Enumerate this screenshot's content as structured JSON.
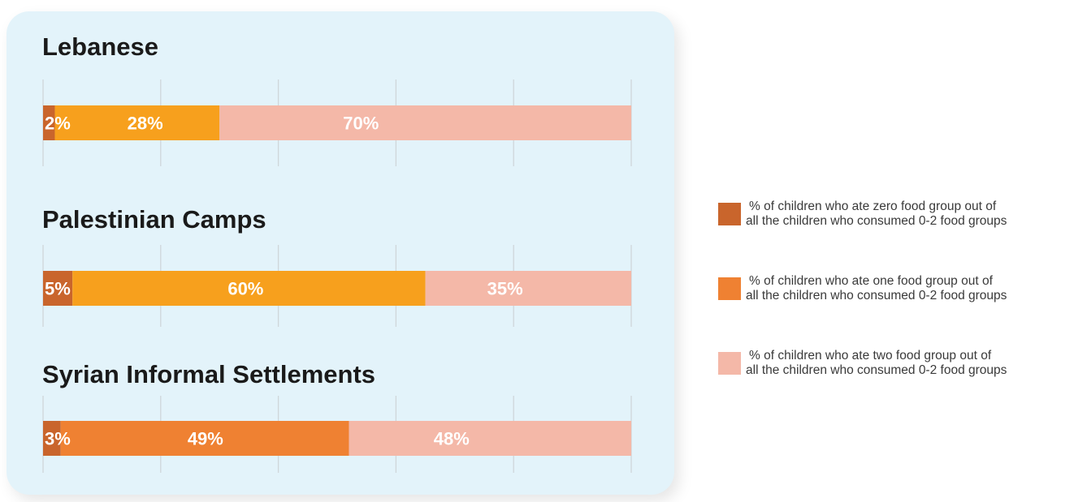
{
  "chart_data": [
    {
      "type": "bar",
      "title": "Lebanese",
      "series": [
        {
          "name": "% of children who ate zero food group out of all the children who consumed 0-2 food groups",
          "value": 2,
          "label": "2%",
          "color": "#c9652c"
        },
        {
          "name": "% of children who ate one food group out of all the children who consumed 0-2 food groups",
          "value": 28,
          "label": "28%",
          "color": "#f7a01d"
        },
        {
          "name": "% of children who ate two food group out of all the children who consumed 0-2 food groups",
          "value": 70,
          "label": "70%",
          "color": "#f4b8a8"
        }
      ],
      "xlim": [
        0,
        100
      ]
    },
    {
      "type": "bar",
      "title": "Palestinian Camps",
      "series": [
        {
          "name": "% of children who ate zero food group out of all the children who consumed 0-2 food groups",
          "value": 5,
          "label": "5%",
          "color": "#c9652c"
        },
        {
          "name": "% of children who ate one food group out of all the children who consumed 0-2 food groups",
          "value": 60,
          "label": "60%",
          "color": "#f7a01d"
        },
        {
          "name": "% of children who ate two food group out of all the children who consumed 0-2 food groups",
          "value": 35,
          "label": "35%",
          "color": "#f4b8a8"
        }
      ],
      "xlim": [
        0,
        100
      ]
    },
    {
      "type": "bar",
      "title": "Syrian Informal Settlements",
      "series": [
        {
          "name": "% of children who ate zero food group out of all the children who consumed 0-2 food groups",
          "value": 3,
          "label": "3%",
          "color": "#c9652c"
        },
        {
          "name": "% of children who ate one food group out of all the children who consumed 0-2 food groups",
          "value": 49,
          "label": "49%",
          "color": "#ef8132"
        },
        {
          "name": "% of children who ate two food group out of all the children who consumed 0-2 food groups",
          "value": 48,
          "label": "48%",
          "color": "#f4b8a8"
        }
      ],
      "xlim": [
        0,
        100
      ]
    }
  ],
  "legend": [
    {
      "line1": "% of children who ate zero food group out of",
      "line2": "all the children who consumed 0-2 food groups",
      "color": "#c9652c"
    },
    {
      "line1": "% of children who ate one food group out of",
      "line2": "all the children who consumed 0-2 food groups",
      "color": "#ef8132"
    },
    {
      "line1": "% of children who ate two food group out of",
      "line2": "all the children who consumed 0-2 food groups",
      "color": "#f4b8a8"
    }
  ],
  "colors": {
    "panel_background": "#e3f3fa",
    "gridline": "#cfd6da",
    "bar_label": "#ffffff",
    "title": "#1a1a1a"
  }
}
